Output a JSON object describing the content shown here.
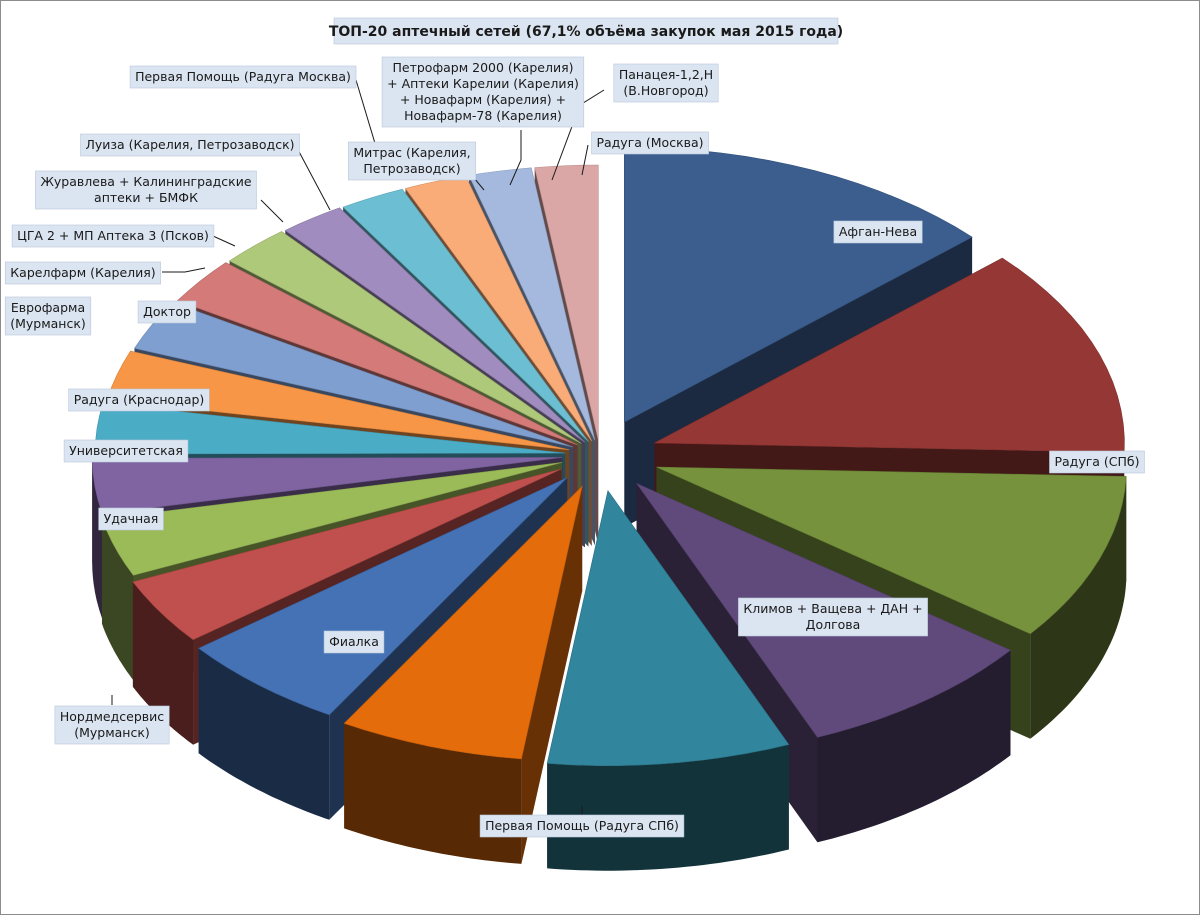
{
  "chart_data": {
    "type": "pie",
    "style": "3d-exploded",
    "title": "ТОП-20 аптечный сетей (67,1% объёма закупок мая 2015 года)",
    "slices": [
      {
        "label": "Афган-Нева",
        "value": 13.5,
        "color": "#3b5e8f"
      },
      {
        "label": "Радуга (СПб)",
        "value": 12.5,
        "color": "#953735"
      },
      {
        "label": "Климов + Ващева + ДАН + Долгова",
        "value": 10.0,
        "color": "#76923c"
      },
      {
        "label": "Первая Помощь (Радуга СПб)",
        "value": 8.5,
        "color": "#604a7b"
      },
      {
        "label": "Фиалка",
        "value": 8.5,
        "color": "#31859c"
      },
      {
        "label": "Нордмедсервис (Мурманск)",
        "value": 6.5,
        "color": "#e46c0a"
      },
      {
        "label": "Удачная",
        "value": 6.0,
        "color": "#4472b5"
      },
      {
        "label": "Университетская",
        "value": 4.0,
        "color": "#c0504d"
      },
      {
        "label": "Радуга (Краснодар)",
        "value": 3.5,
        "color": "#9bbb59"
      },
      {
        "label": "Еврофарма (Мурманск)",
        "value": 3.3,
        "color": "#8064a2"
      },
      {
        "label": "Доктор",
        "value": 3.0,
        "color": "#4bacc6"
      },
      {
        "label": "Карелфарм (Карелия)",
        "value": 3.0,
        "color": "#f79646"
      },
      {
        "label": "ЦГА 2 + МП Аптека 3 (Псков)",
        "value": 3.0,
        "color": "#7f9fd0"
      },
      {
        "label": "Журавлева + Калининградские аптеки + БМФК",
        "value": 2.8,
        "color": "#d47a78"
      },
      {
        "label": "Луиза (Карелия, Петрозаводск)",
        "value": 2.5,
        "color": "#afc97a"
      },
      {
        "label": "Первая Помощь (Радуга Москва)",
        "value": 2.3,
        "color": "#a08cbf"
      },
      {
        "label": "Митрас (Карелия, Петрозаводск)",
        "value": 2.3,
        "color": "#6cbfd3"
      },
      {
        "label": "Петрофарм 2000 (Карелия) + Аптеки Карелии (Карелия) + Новафарм (Карелия) + Новафарм-78 (Карелия)",
        "value": 2.2,
        "color": "#f9ac78"
      },
      {
        "label": "Панацея-1,2,Н (В.Новгород)",
        "value": 2.2,
        "color": "#a4b9dd"
      },
      {
        "label": "Радуга (Москва)",
        "value": 2.2,
        "color": "#dba7a6"
      }
    ]
  },
  "labels": {
    "s0": [
      "Афган-Нева"
    ],
    "s1": [
      "Радуга (СПб)"
    ],
    "s2": [
      "Климов + Ващева + ДАН +",
      "Долгова"
    ],
    "s3": [
      "Первая Помощь (Радуга СПб)"
    ],
    "s4": [
      "Фиалка"
    ],
    "s5": [
      "Нордмедсервис",
      "(Мурманск)"
    ],
    "s6": [
      "Удачная"
    ],
    "s7": [
      "Университетская"
    ],
    "s8": [
      "Радуга (Краснодар)"
    ],
    "s9": [
      "Еврофарма",
      "(Мурманск)"
    ],
    "s10": [
      "Доктор"
    ],
    "s11": [
      "Карелфарм (Карелия)"
    ],
    "s12": [
      "ЦГА 2 + МП Аптека 3 (Псков)"
    ],
    "s13": [
      "Журавлева + Калининградские",
      "аптеки + БМФК"
    ],
    "s14": [
      "Луиза (Карелия, Петрозаводск)"
    ],
    "s15": [
      "Первая Помощь (Радуга Москва)"
    ],
    "s16": [
      "Митрас (Карелия,",
      "Петрозаводск)"
    ],
    "s17": [
      "Петрофарм 2000 (Карелия)",
      "+ Аптеки Карелии (Карелия)",
      "+ Новафарм (Карелия) +",
      "Новафарм-78 (Карелия)"
    ],
    "s18": [
      "Панацея-1,2,Н",
      "(В.Новгород)"
    ],
    "s19": [
      "Радуга (Москва)"
    ]
  }
}
